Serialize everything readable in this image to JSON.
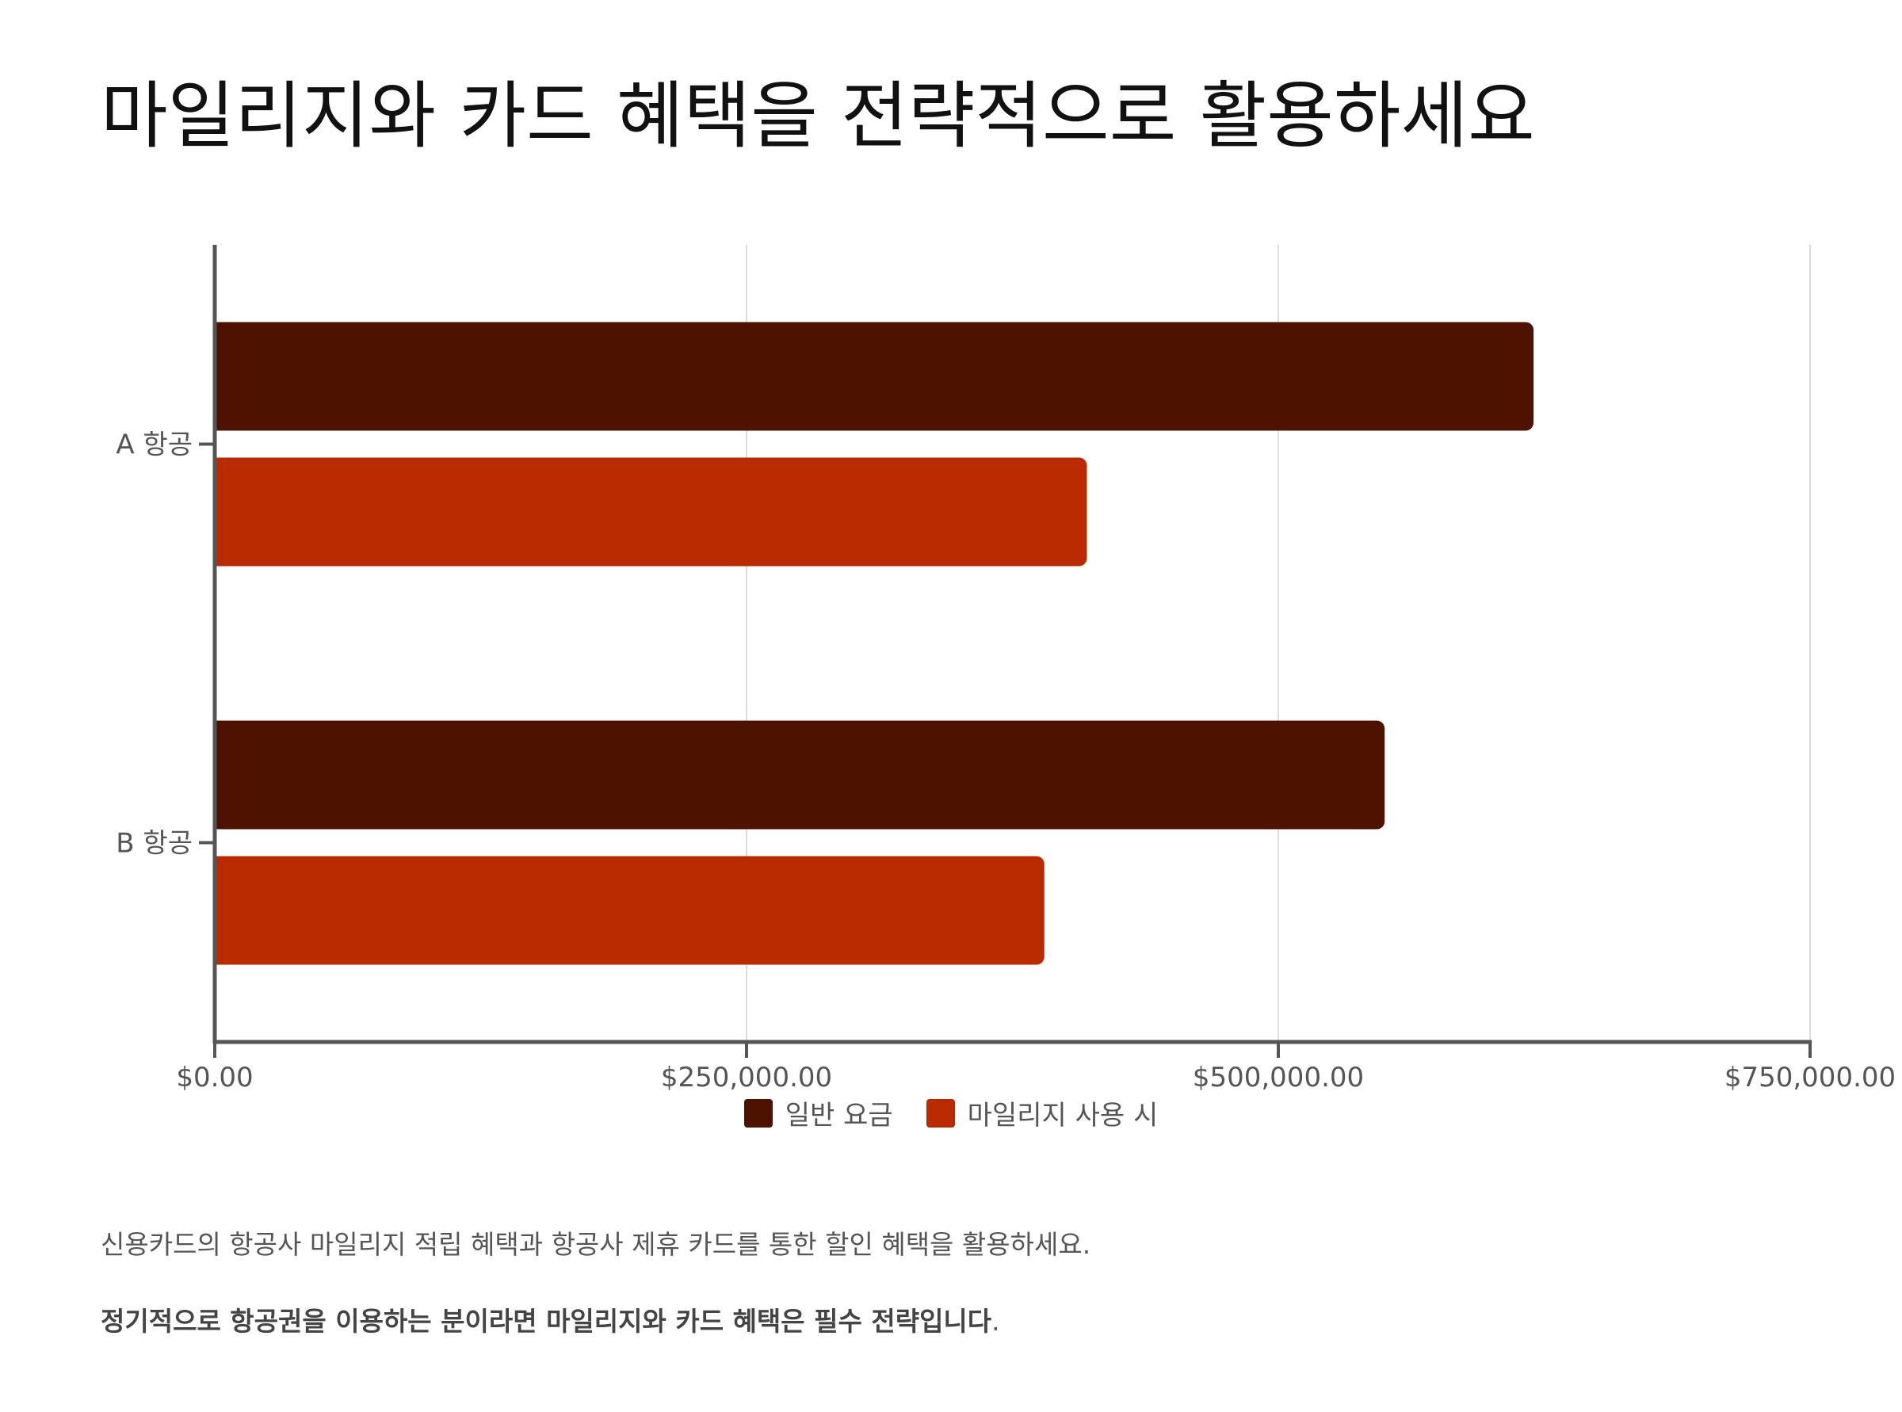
{
  "title": "마일리지와 카드 혜택을 전략적으로 활용하세요",
  "notes": {
    "line1": "신용카드의 항공사 마일리지 적립 혜택과 항공사 제휴 카드를 통한 할인 혜택을 활용하세요.",
    "line2_bold": "정기적으로 항공권을 이용하는 분이라면 마일리지와 카드 혜택은 필수 전략입니다",
    "line2_tail": "."
  },
  "colors": {
    "series1": "#4e1200",
    "series2": "#ba2a00",
    "axis": "#555555",
    "grid": "#dddddd"
  },
  "chart_data": {
    "type": "bar",
    "orientation": "horizontal",
    "categories": [
      "A 항공",
      "B 항공"
    ],
    "series": [
      {
        "name": "일반 요금",
        "values": [
          620000,
          550000
        ]
      },
      {
        "name": "마일리지 사용 시",
        "values": [
          410000,
          390000
        ]
      }
    ],
    "xlim": [
      0,
      750000
    ],
    "xticks": [
      0,
      250000,
      500000,
      750000
    ],
    "xtick_labels": [
      "$0.00",
      "$250,000.00",
      "$500,000.00",
      "$750,000.00"
    ],
    "grid": true,
    "legend_position": "bottom-center"
  }
}
